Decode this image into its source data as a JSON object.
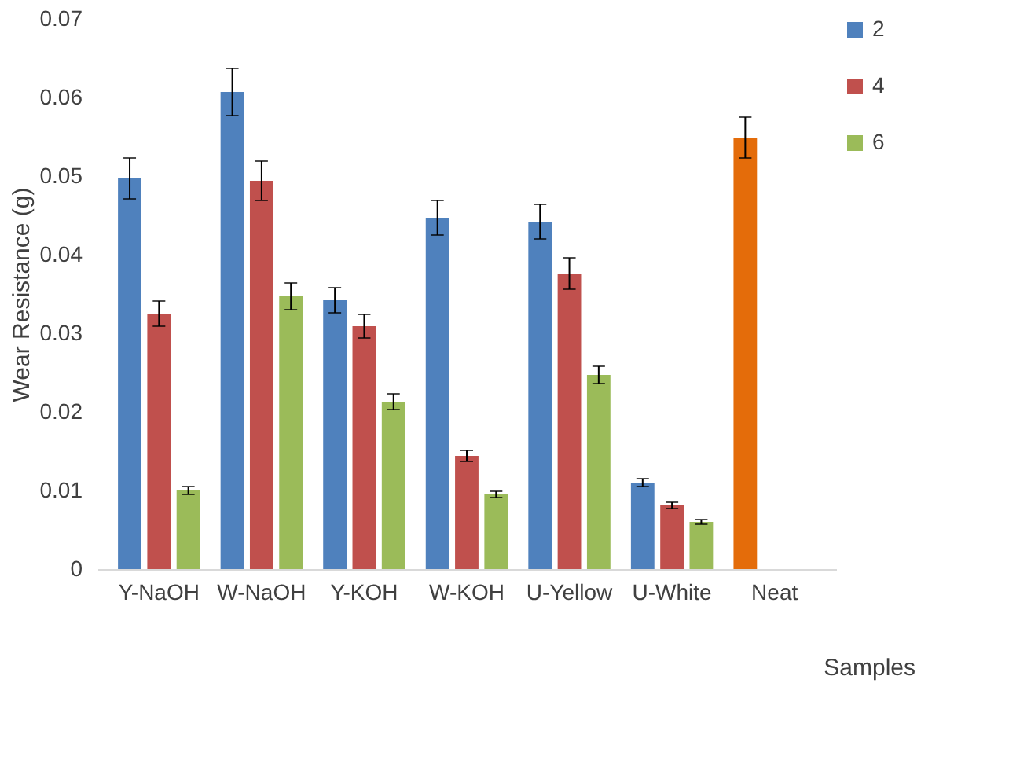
{
  "chart_data": {
    "type": "bar",
    "ylabel": "Wear Resistance (g)",
    "xlabel": "Samples",
    "categories": [
      "Y-NaOH",
      "W-NaOH",
      "Y-KOH",
      "W-KOH",
      "U-Yellow",
      "U-White",
      "Neat"
    ],
    "series": [
      {
        "name": "2",
        "color": "#4f81bd",
        "colors": [
          "#4f81bd",
          "#4f81bd",
          "#4f81bd",
          "#4f81bd",
          "#4f81bd",
          "#4f81bd",
          "#e46c0a"
        ],
        "values": [
          0.0497,
          0.0607,
          0.0342,
          0.0447,
          0.0442,
          0.011,
          0.0549
        ],
        "errors": [
          0.0026,
          0.003,
          0.0016,
          0.0022,
          0.0022,
          0.0005,
          0.0026
        ]
      },
      {
        "name": "4",
        "color": "#c0504d",
        "values": [
          0.0325,
          0.0494,
          0.0309,
          0.0144,
          0.0376,
          0.0081,
          null
        ],
        "errors": [
          0.0016,
          0.0025,
          0.0015,
          0.0007,
          0.002,
          0.0004,
          null
        ]
      },
      {
        "name": "6",
        "color": "#9bbb59",
        "values": [
          0.01,
          0.0347,
          0.0213,
          0.0095,
          0.0247,
          0.006,
          null
        ],
        "errors": [
          0.0005,
          0.0017,
          0.001,
          0.0004,
          0.0011,
          0.0003,
          null
        ]
      }
    ],
    "ylim": [
      0,
      0.07
    ],
    "yticks": [
      0,
      0.01,
      0.02,
      0.03,
      0.04,
      0.05,
      0.06,
      0.07
    ],
    "grid": false,
    "legend": "top right"
  }
}
